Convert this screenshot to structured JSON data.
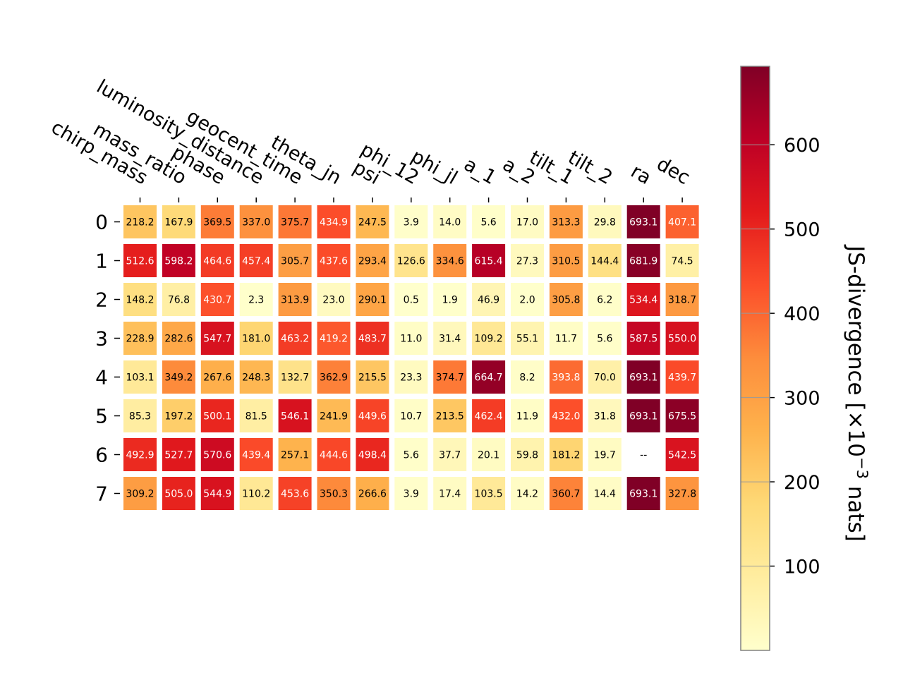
{
  "chart_data": {
    "type": "heatmap",
    "title": "",
    "columns": [
      "chirp_mass",
      "mass_ratio",
      "phase",
      "luminosity_distance",
      "geocent_time",
      "theta_jn",
      "psi",
      "phi_12",
      "phi_jl",
      "a_1",
      "a_2",
      "tilt_1",
      "tilt_2",
      "ra",
      "dec"
    ],
    "rows": [
      "0",
      "1",
      "2",
      "3",
      "4",
      "5",
      "6",
      "7"
    ],
    "values": [
      [
        218.2,
        167.9,
        369.5,
        337.0,
        375.7,
        434.9,
        247.5,
        3.9,
        14.0,
        5.6,
        17.0,
        313.3,
        29.8,
        693.1,
        407.1
      ],
      [
        512.6,
        598.2,
        464.6,
        457.4,
        305.7,
        437.6,
        293.4,
        126.6,
        334.6,
        615.4,
        27.3,
        310.5,
        144.4,
        681.9,
        74.5
      ],
      [
        148.2,
        76.8,
        430.7,
        2.3,
        313.9,
        23.0,
        290.1,
        0.5,
        1.9,
        46.9,
        2.0,
        305.8,
        6.2,
        534.4,
        318.7
      ],
      [
        228.9,
        282.6,
        547.7,
        181.0,
        463.2,
        419.2,
        483.7,
        11.0,
        31.4,
        109.2,
        55.1,
        11.7,
        5.6,
        587.5,
        550.0
      ],
      [
        103.1,
        349.2,
        267.6,
        248.3,
        132.7,
        362.9,
        215.5,
        23.3,
        374.7,
        664.7,
        8.2,
        393.8,
        70.0,
        693.1,
        439.7
      ],
      [
        85.3,
        197.2,
        500.1,
        81.5,
        546.1,
        241.9,
        449.6,
        10.7,
        213.5,
        462.4,
        11.9,
        432.0,
        31.8,
        693.1,
        675.5
      ],
      [
        492.9,
        527.7,
        570.6,
        439.4,
        257.1,
        444.6,
        498.4,
        5.6,
        37.7,
        20.1,
        59.8,
        181.2,
        19.7,
        null,
        542.5
      ],
      [
        309.2,
        505.0,
        544.9,
        110.2,
        453.6,
        350.3,
        266.6,
        3.9,
        17.4,
        103.5,
        14.2,
        360.7,
        14.4,
        693.1,
        327.8
      ]
    ],
    "missing_label": "--",
    "colorbar": {
      "label_prefix": "JS-divergence [×10",
      "label_exponent": "−3",
      "label_suffix": " nats]",
      "range": [
        0,
        693.1
      ],
      "ticks": [
        100,
        200,
        300,
        400,
        500,
        600
      ],
      "colormap": "YlOrRd",
      "colors": [
        "#ffffcc",
        "#ffeda0",
        "#fed976",
        "#feb24c",
        "#fd8d3c",
        "#fc4e2a",
        "#e31a1c",
        "#bd0026",
        "#800026"
      ]
    },
    "grid": false,
    "legend": "colorbar-right"
  }
}
